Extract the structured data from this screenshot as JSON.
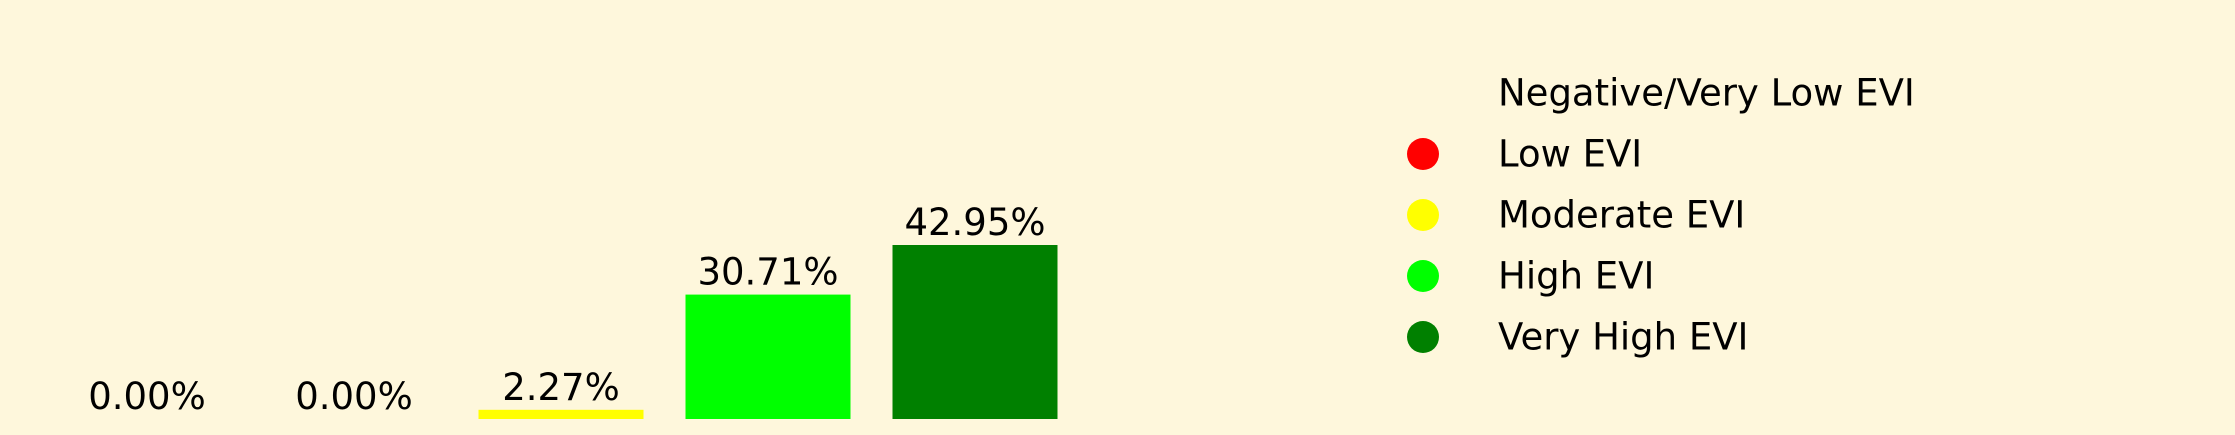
{
  "chart_data": {
    "type": "bar",
    "categories": [
      "Negative/Very Low EVI",
      "Low EVI",
      "Moderate EVI",
      "High EVI",
      "Very High EVI"
    ],
    "values": [
      0.0,
      0.0,
      2.27,
      30.71,
      42.95
    ],
    "data_labels": [
      "0.00%",
      "0.00%",
      "2.27%",
      "30.71%",
      "42.95%"
    ],
    "colors": [
      "#FEF7DC",
      "#FF0000",
      "#FFFF00",
      "#00FF00",
      "#008000"
    ],
    "title": "",
    "xlabel": "",
    "ylabel": "",
    "grid": false,
    "legend_position": "right",
    "legend": [
      {
        "label": "Negative/Very Low EVI",
        "color": "#FEF7DC"
      },
      {
        "label": "Low EVI",
        "color": "#FF0000"
      },
      {
        "label": "Moderate EVI",
        "color": "#FFFF00"
      },
      {
        "label": "High EVI",
        "color": "#00FF00"
      },
      {
        "label": "Very High EVI",
        "color": "#008000"
      }
    ]
  }
}
